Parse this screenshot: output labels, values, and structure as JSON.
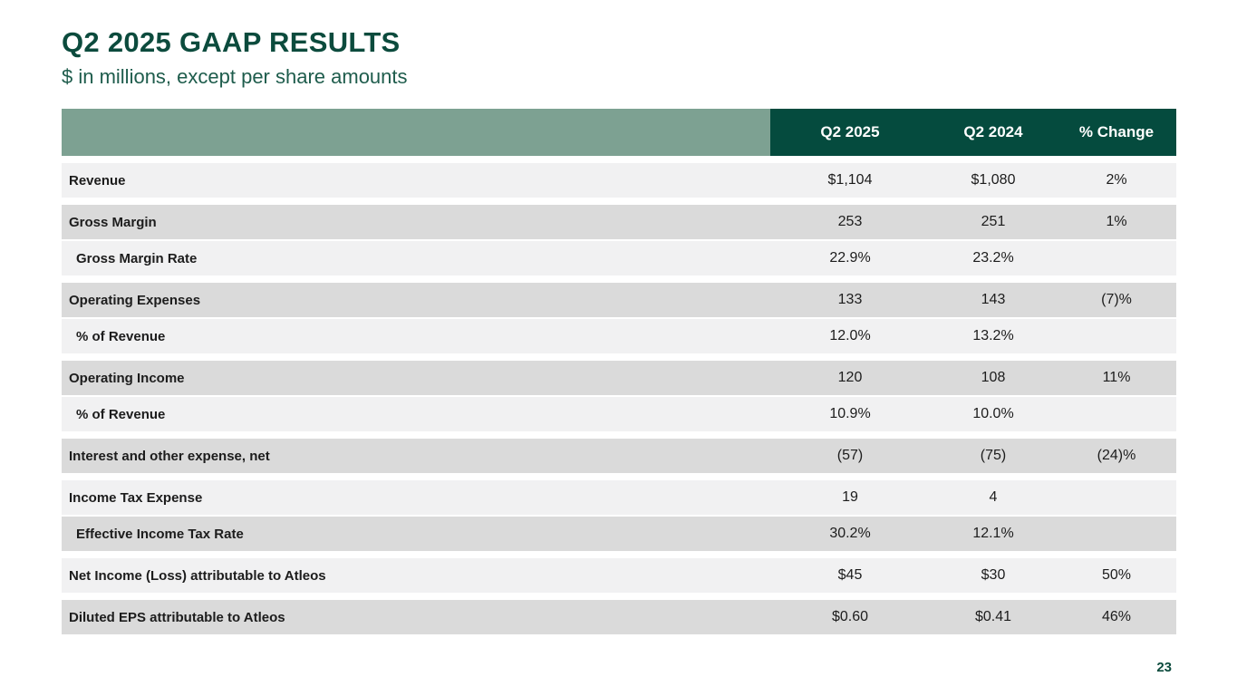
{
  "slide": {
    "title": "Q2 2025 GAAP RESULTS",
    "subtitle": "$ in millions, except per share amounts",
    "page_number": "23"
  },
  "colors": {
    "title_green": "#0C4B3D",
    "subtitle_green": "#1E5C4C",
    "header_green": "#054B3E",
    "sage_green": "#7DA192",
    "row_light": "#F1F1F2",
    "row_dark": "#DADADA",
    "header_text": "#FFFFFF",
    "body_text": "#1C1C1C"
  },
  "table": {
    "columns": [
      "Q2 2025",
      "Q2 2024",
      "% Change"
    ],
    "groups": [
      {
        "rows": [
          {
            "label": "Revenue",
            "indent": false,
            "values": [
              "$1,104",
              "$1,080",
              "2%"
            ]
          }
        ]
      },
      {
        "rows": [
          {
            "label": "Gross Margin",
            "indent": false,
            "values": [
              "253",
              "251",
              "1%"
            ]
          },
          {
            "label": "Gross Margin Rate",
            "indent": true,
            "values": [
              "22.9%",
              "23.2%",
              ""
            ]
          }
        ]
      },
      {
        "rows": [
          {
            "label": "Operating Expenses",
            "indent": false,
            "values": [
              "133",
              "143",
              "(7)%"
            ]
          },
          {
            "label": "% of Revenue",
            "indent": true,
            "values": [
              "12.0%",
              "13.2%",
              ""
            ]
          }
        ]
      },
      {
        "rows": [
          {
            "label": "Operating Income",
            "indent": false,
            "values": [
              "120",
              "108",
              "11%"
            ]
          },
          {
            "label": "% of Revenue",
            "indent": true,
            "values": [
              "10.9%",
              "10.0%",
              ""
            ]
          }
        ]
      },
      {
        "rows": [
          {
            "label": "Interest and other expense, net",
            "indent": false,
            "values": [
              "(57)",
              "(75)",
              "(24)%"
            ]
          }
        ]
      },
      {
        "rows": [
          {
            "label": "Income Tax Expense",
            "indent": false,
            "values": [
              "19",
              "4",
              ""
            ]
          },
          {
            "label": "Effective Income Tax Rate",
            "indent": true,
            "values": [
              "30.2%",
              "12.1%",
              ""
            ]
          }
        ]
      },
      {
        "rows": [
          {
            "label": "Net Income (Loss) attributable to Atleos",
            "indent": false,
            "values": [
              "$45",
              "$30",
              "50%"
            ]
          }
        ]
      },
      {
        "rows": [
          {
            "label": "Diluted EPS attributable to Atleos",
            "indent": false,
            "values": [
              "$0.60",
              "$0.41",
              "46%"
            ]
          }
        ]
      }
    ]
  }
}
